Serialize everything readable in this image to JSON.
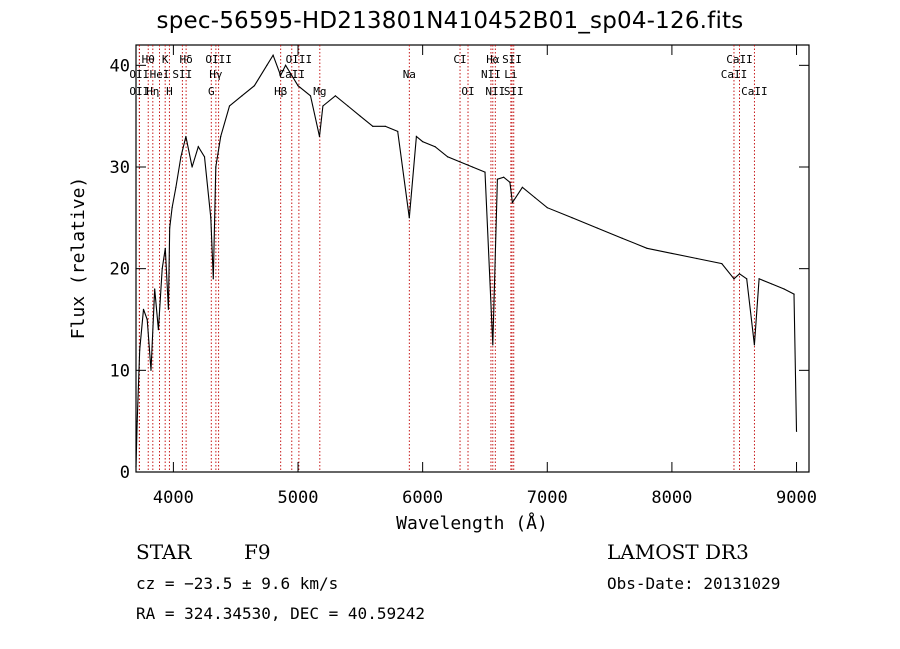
{
  "title": "spec-56595-HD213801N410452B01_sp04-126.fits",
  "chart_data": {
    "type": "line",
    "title": "spec-56595-HD213801N410452B01_sp04-126.fits",
    "xlabel": "Wavelength (Å)",
    "ylabel": "Flux (relative)",
    "xlim": [
      3700,
      9100
    ],
    "ylim": [
      0,
      42
    ],
    "x_ticks": [
      4000,
      5000,
      6000,
      7000,
      8000,
      9000
    ],
    "y_ticks": [
      0,
      10,
      20,
      30,
      40
    ],
    "series": [
      {
        "name": "flux",
        "x": [
          3700,
          3710,
          3730,
          3760,
          3790,
          3820,
          3850,
          3880,
          3910,
          3935,
          3960,
          3970,
          3990,
          4020,
          4060,
          4100,
          4150,
          4200,
          4250,
          4300,
          4320,
          4340,
          4380,
          4450,
          4550,
          4650,
          4750,
          4800,
          4860,
          4900,
          4950,
          5000,
          5100,
          5172,
          5200,
          5300,
          5400,
          5500,
          5600,
          5700,
          5800,
          5893,
          5950,
          6000,
          6100,
          6200,
          6300,
          6400,
          6500,
          6563,
          6600,
          6650,
          6700,
          6720,
          6800,
          6900,
          7000,
          7200,
          7400,
          7600,
          7800,
          8000,
          8200,
          8400,
          8498,
          8542,
          8600,
          8662,
          8700,
          8800,
          8900,
          8980,
          9000
        ],
        "y": [
          0.5,
          5,
          12,
          16,
          15,
          10,
          18,
          14,
          20,
          22,
          16,
          24,
          26,
          28,
          31,
          33,
          30,
          32,
          31,
          25,
          19,
          30,
          33,
          36,
          37,
          38,
          40,
          41,
          39,
          40,
          39,
          38,
          37,
          33,
          36,
          37,
          36,
          35,
          34,
          34,
          33.5,
          25,
          33,
          32.5,
          32,
          31,
          30.5,
          30,
          29.5,
          12.5,
          28.8,
          29,
          28.5,
          26.5,
          28,
          27,
          26,
          25,
          24,
          23,
          22,
          21.5,
          21,
          20.5,
          19,
          19.5,
          19,
          12.5,
          19,
          18.5,
          18,
          17.5,
          4
        ]
      }
    ],
    "lines_top": [
      {
        "label": "Hθ",
        "wl": 3798
      },
      {
        "label": "K",
        "wl": 3934
      },
      {
        "label": "Hδ",
        "wl": 4102
      },
      {
        "label": "OIII",
        "wl": 4363
      },
      {
        "label": "OIII",
        "wl": 5007
      },
      {
        "label": "CI",
        "wl": 6300
      },
      {
        "label": "Hα",
        "wl": 6563
      },
      {
        "label": "SII",
        "wl": 6717
      },
      {
        "label": "CaII",
        "wl": 8542
      }
    ],
    "lines_mid": [
      {
        "label": "OII",
        "wl": 3727
      },
      {
        "label": "HeI",
        "wl": 3889
      },
      {
        "label": "SII",
        "wl": 4072
      },
      {
        "label": "Hγ",
        "wl": 4341
      },
      {
        "label": "CaII",
        "wl": 4950
      },
      {
        "label": "Na",
        "wl": 5893
      },
      {
        "label": "NII",
        "wl": 6548
      },
      {
        "label": "Li",
        "wl": 6708
      },
      {
        "label": "CaII",
        "wl": 8498
      }
    ],
    "lines_low": [
      {
        "label": "OII",
        "wl": 3727
      },
      {
        "label": "Hη",
        "wl": 3835
      },
      {
        "label": "H",
        "wl": 3968
      },
      {
        "label": "G",
        "wl": 4304
      },
      {
        "label": "Hβ",
        "wl": 4861
      },
      {
        "label": "Mg",
        "wl": 5175
      },
      {
        "label": "OI",
        "wl": 6364
      },
      {
        "label": "NII",
        "wl": 6583
      },
      {
        "label": "SII",
        "wl": 6731
      },
      {
        "label": "CaII",
        "wl": 8662
      }
    ]
  },
  "info": {
    "object_class": "STAR",
    "subclass": "F9",
    "survey": "LAMOST DR3",
    "cz": "cz = −23.5 ± 9.6 km/s",
    "obs_date": "Obs-Date: 20131029",
    "radec": "RA = 324.34530, DEC =  40.59242"
  }
}
